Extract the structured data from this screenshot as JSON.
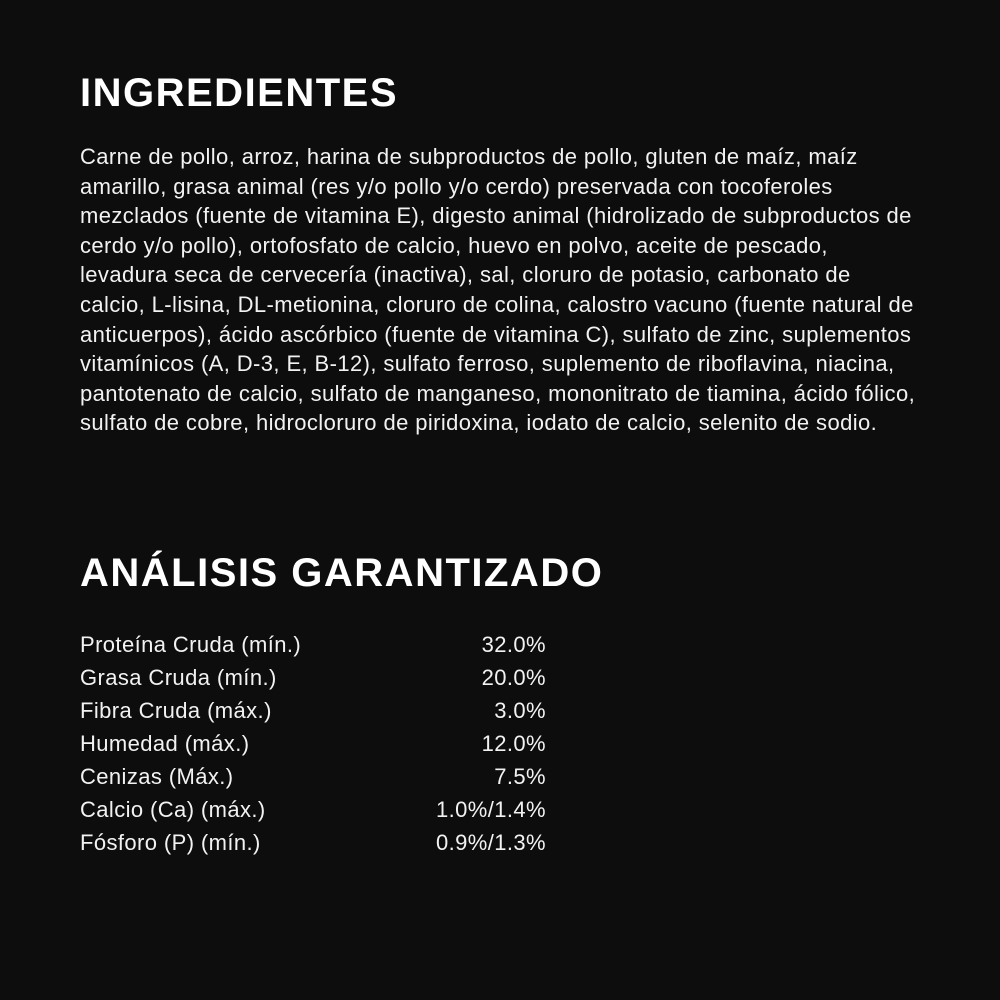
{
  "page": {
    "background_color": "#0d0d0d",
    "heading_color": "#ffffff",
    "body_text_color": "#f2f2f2"
  },
  "ingredients": {
    "title": "INGREDIENTES",
    "text": "Carne de pollo, arroz, harina de subproductos de pollo, gluten de maíz, maíz amarillo, grasa animal (res y/o pollo y/o cerdo) preservada con tocoferoles mezclados (fuente de vitamina E), digesto animal (hidrolizado de subproductos de cerdo y/o pollo), ortofosfato de calcio, huevo en polvo, aceite de pescado, levadura seca de cervecería (inactiva), sal, cloruro de potasio, carbonato de calcio, L-lisina, DL-metionina, cloruro de colina, calostro vacuno (fuente natural de anticuerpos), ácido ascórbico (fuente de vitamina C), sulfato de zinc, suplementos vitamínicos (A, D-3, E, B-12), sulfato ferroso, suplemento de riboflavina, niacina, pantotenato de calcio, sulfato de manganeso, mononitrato de tiamina, ácido fólico, sulfato de cobre, hidrocloruro de piridoxina, iodato de calcio, selenito de sodio."
  },
  "guaranteed_analysis": {
    "title": "ANÁLISIS GARANTIZADO",
    "rows": [
      {
        "label": "Proteína Cruda (mín.)",
        "value": "32.0%"
      },
      {
        "label": "Grasa Cruda (mín.)",
        "value": "20.0%"
      },
      {
        "label": "Fibra Cruda (máx.)",
        "value": "3.0%"
      },
      {
        "label": "Humedad (máx.)",
        "value": "12.0%"
      },
      {
        "label": "Cenizas (Máx.)",
        "value": "7.5%"
      },
      {
        "label": "Calcio (Ca) (máx.)",
        "value": "1.0%/1.4%"
      },
      {
        "label": "Fósforo (P) (mín.)",
        "value": "0.9%/1.3%"
      }
    ]
  }
}
